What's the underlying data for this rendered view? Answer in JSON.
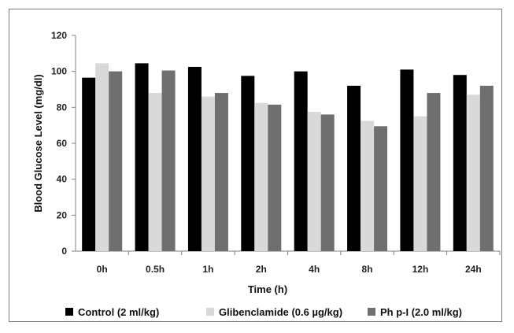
{
  "chart_data": {
    "type": "bar",
    "categories": [
      "0h",
      "0.5h",
      "1h",
      "2h",
      "4h",
      "8h",
      "12h",
      "24h"
    ],
    "series": [
      {
        "name": "Control (2 ml/kg)",
        "color": "#000000",
        "values": [
          96.5,
          104.5,
          102.5,
          97.5,
          100,
          92,
          101,
          98
        ]
      },
      {
        "name": "Glibenclamide (0.6 µg/kg)",
        "color": "#d9d9d9",
        "values": [
          104.5,
          88,
          86,
          82.5,
          77.5,
          72.5,
          75,
          87
        ]
      },
      {
        "name": "Ph p-I (2.0 ml/kg)",
        "color": "#6f6f6f",
        "values": [
          100,
          100.5,
          88,
          81.5,
          76,
          69.5,
          88,
          92
        ]
      }
    ],
    "xlabel": "Time (h)",
    "ylabel": "Blood Glucose Level (mg/dl)",
    "ylim": [
      0,
      120
    ],
    "yticks": [
      0,
      20,
      40,
      60,
      80,
      100,
      120
    ],
    "grid": false,
    "legend_position": "bottom"
  }
}
